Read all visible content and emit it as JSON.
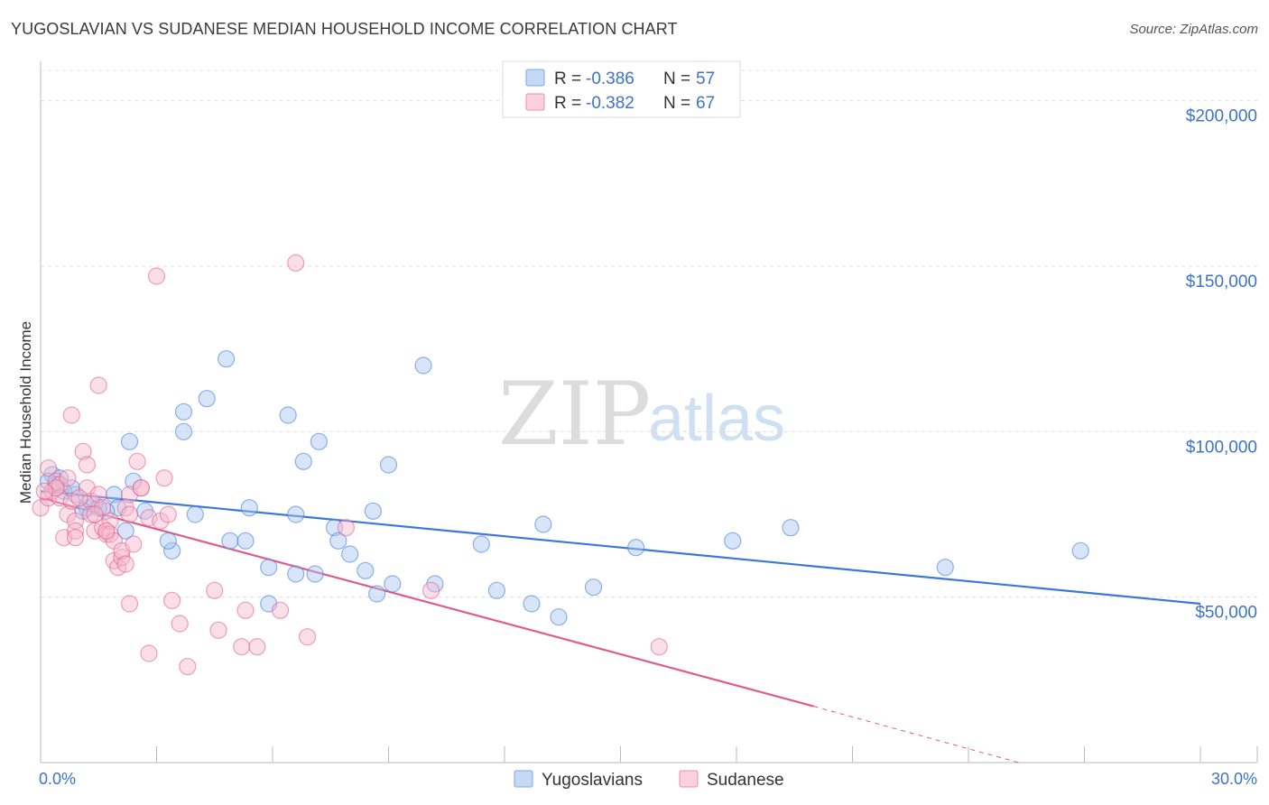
{
  "title": "YUGOSLAVIAN VS SUDANESE MEDIAN HOUSEHOLD INCOME CORRELATION CHART",
  "source": "Source: ZipAtlas.com",
  "watermark": {
    "zip": "ZIP",
    "atlas": "atlas"
  },
  "stats": [
    {
      "r_label": "R =",
      "r_value": "-0.386",
      "n_label": "N =",
      "n_value": "57",
      "color": "#7aa8e8",
      "fill": "#c5d9f5"
    },
    {
      "r_label": "R =",
      "r_value": "-0.382",
      "n_label": "N =",
      "n_value": "67",
      "color": "#ee8fb0",
      "fill": "#fbd0df"
    }
  ],
  "chart_data": {
    "type": "scatter",
    "ylabel": "Median Household Income",
    "xlim": [
      0,
      30
    ],
    "ylim": [
      0,
      210000
    ],
    "x_tick_labels": [
      {
        "value": 0,
        "label": "0.0%"
      },
      {
        "value": 30,
        "label": "30.0%"
      }
    ],
    "y_tick_labels": [
      {
        "value": 50000,
        "label": "$50,000"
      },
      {
        "value": 100000,
        "label": "$100,000"
      },
      {
        "value": 150000,
        "label": "$150,000"
      },
      {
        "value": 200000,
        "label": "$200,000"
      }
    ],
    "grid": "horizontal dashed",
    "legend_position": "bottom-center",
    "series": [
      {
        "name": "Yugoslavians",
        "color": "#3d78d8",
        "fill": "#a9c6ef",
        "trend": {
          "x": [
            0,
            30
          ],
          "y": [
            82000,
            48000
          ],
          "dashed_from": null
        },
        "points": [
          [
            0.3,
            87000
          ],
          [
            0.5,
            86000
          ],
          [
            0.4,
            84000
          ],
          [
            0.6,
            82000
          ],
          [
            0.9,
            81000
          ],
          [
            1.2,
            77000
          ],
          [
            1.4,
            78000
          ],
          [
            1.9,
            81000
          ],
          [
            2.0,
            77000
          ],
          [
            2.4,
            85000
          ],
          [
            1.7,
            76000
          ],
          [
            1.1,
            76000
          ],
          [
            2.7,
            76000
          ],
          [
            2.2,
            70000
          ],
          [
            2.3,
            97000
          ],
          [
            3.7,
            106000
          ],
          [
            4.3,
            110000
          ],
          [
            3.4,
            64000
          ],
          [
            3.3,
            67000
          ],
          [
            4.0,
            75000
          ],
          [
            4.8,
            122000
          ],
          [
            4.9,
            67000
          ],
          [
            5.3,
            67000
          ],
          [
            5.4,
            77000
          ],
          [
            5.9,
            59000
          ],
          [
            5.9,
            48000
          ],
          [
            6.4,
            105000
          ],
          [
            6.6,
            75000
          ],
          [
            6.6,
            57000
          ],
          [
            7.1,
            57000
          ],
          [
            6.8,
            91000
          ],
          [
            7.2,
            97000
          ],
          [
            7.6,
            71000
          ],
          [
            7.7,
            67000
          ],
          [
            8.0,
            63000
          ],
          [
            8.4,
            58000
          ],
          [
            8.6,
            76000
          ],
          [
            8.7,
            51000
          ],
          [
            9.0,
            90000
          ],
          [
            9.1,
            54000
          ],
          [
            9.9,
            120000
          ],
          [
            10.2,
            54000
          ],
          [
            11.4,
            66000
          ],
          [
            11.8,
            52000
          ],
          [
            12.7,
            48000
          ],
          [
            13.0,
            72000
          ],
          [
            13.4,
            44000
          ],
          [
            14.3,
            53000
          ],
          [
            15.4,
            65000
          ],
          [
            17.9,
            67000
          ],
          [
            19.4,
            71000
          ],
          [
            23.4,
            59000
          ],
          [
            26.9,
            64000
          ],
          [
            3.7,
            100000
          ],
          [
            0.8,
            83000
          ],
          [
            1.5,
            77000
          ],
          [
            0.2,
            85000
          ]
        ]
      },
      {
        "name": "Sudanese",
        "color": "#e05a8c",
        "fill": "#f6b8cd",
        "trend": {
          "x": [
            0,
            20
          ],
          "y": [
            80000,
            17000
          ],
          "dashed_to": [
            25.3,
            0
          ]
        },
        "points": [
          [
            0.0,
            77000
          ],
          [
            0.2,
            80000
          ],
          [
            0.3,
            82000
          ],
          [
            0.2,
            89000
          ],
          [
            0.4,
            85000
          ],
          [
            0.5,
            84000
          ],
          [
            0.5,
            80000
          ],
          [
            0.6,
            68000
          ],
          [
            0.7,
            86000
          ],
          [
            0.7,
            75000
          ],
          [
            0.8,
            79000
          ],
          [
            0.9,
            73000
          ],
          [
            0.9,
            70000
          ],
          [
            0.9,
            68000
          ],
          [
            0.8,
            105000
          ],
          [
            1.1,
            94000
          ],
          [
            1.2,
            90000
          ],
          [
            1.2,
            83000
          ],
          [
            1.3,
            79000
          ],
          [
            1.3,
            75000
          ],
          [
            1.4,
            70000
          ],
          [
            1.5,
            114000
          ],
          [
            1.5,
            81000
          ],
          [
            1.6,
            77000
          ],
          [
            1.6,
            71000
          ],
          [
            1.7,
            69000
          ],
          [
            1.8,
            73000
          ],
          [
            1.8,
            69000
          ],
          [
            1.9,
            67000
          ],
          [
            1.9,
            61000
          ],
          [
            2.0,
            59000
          ],
          [
            2.1,
            62000
          ],
          [
            2.1,
            64000
          ],
          [
            2.2,
            77000
          ],
          [
            2.3,
            81000
          ],
          [
            2.3,
            75000
          ],
          [
            2.4,
            66000
          ],
          [
            2.5,
            91000
          ],
          [
            2.6,
            83000
          ],
          [
            2.8,
            74000
          ],
          [
            3.2,
            86000
          ],
          [
            3.1,
            73000
          ],
          [
            2.3,
            48000
          ],
          [
            2.8,
            33000
          ],
          [
            3.4,
            49000
          ],
          [
            3.6,
            42000
          ],
          [
            3.8,
            29000
          ],
          [
            4.5,
            52000
          ],
          [
            4.6,
            40000
          ],
          [
            5.2,
            35000
          ],
          [
            5.3,
            46000
          ],
          [
            5.6,
            35000
          ],
          [
            6.2,
            46000
          ],
          [
            6.9,
            38000
          ],
          [
            7.9,
            71000
          ],
          [
            10.1,
            52000
          ],
          [
            16.0,
            35000
          ],
          [
            3.0,
            147000
          ],
          [
            6.6,
            151000
          ],
          [
            2.6,
            83000
          ],
          [
            0.4,
            83000
          ],
          [
            1.0,
            80000
          ],
          [
            1.4,
            75000
          ],
          [
            1.7,
            70000
          ],
          [
            2.2,
            60000
          ],
          [
            3.3,
            75000
          ],
          [
            0.1,
            82000
          ]
        ]
      }
    ]
  }
}
